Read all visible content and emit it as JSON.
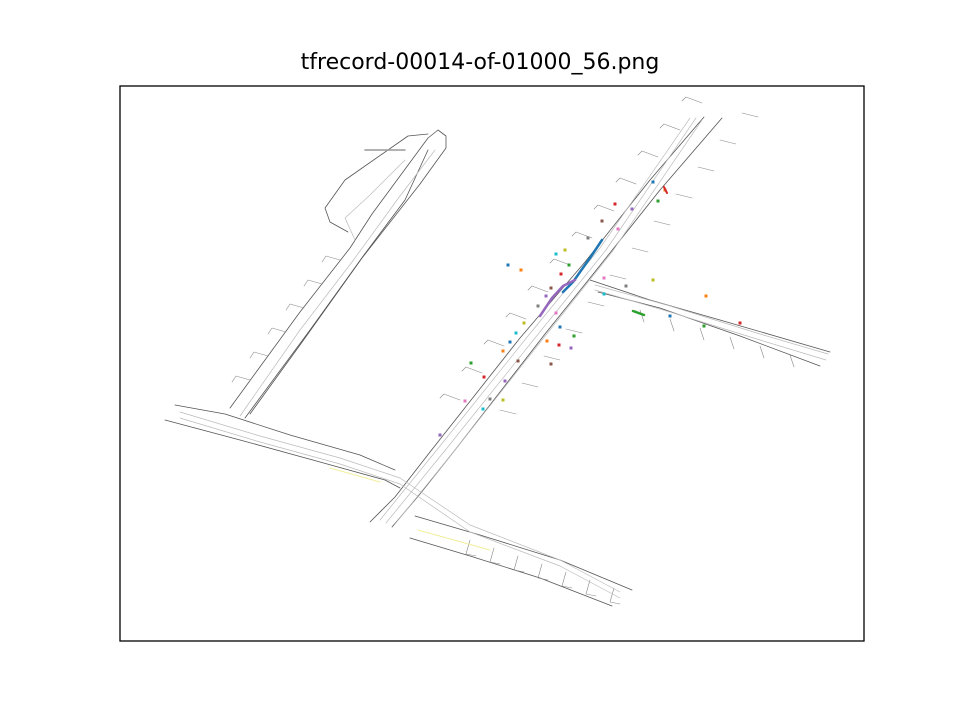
{
  "figure": {
    "title": "tfrecord-00014-of-01000_56.png"
  },
  "colors": {
    "road_edge": "#555555",
    "lane": "#bbbbbb",
    "yellow_lane": "#f2ef9c",
    "trajectory_blue": "#1f77b4",
    "trajectory_purple": "#9467bd",
    "trajectory_green": "#2ca02c",
    "trajectory_red": "#d62728"
  },
  "agent_colors": [
    "#1f77b4",
    "#ff7f0e",
    "#2ca02c",
    "#d62728",
    "#9467bd",
    "#8c564b",
    "#e377c2",
    "#7f7f7f",
    "#bcbd22",
    "#17becf"
  ]
}
